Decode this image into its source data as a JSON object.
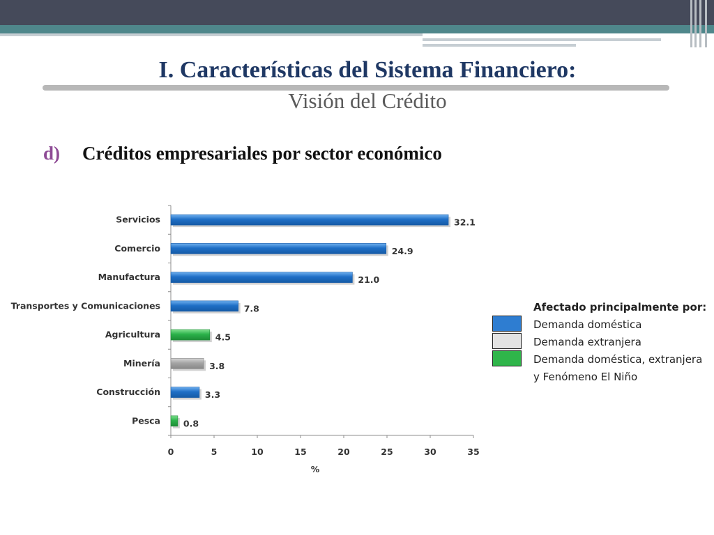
{
  "slide": {
    "title": "I. Características del Sistema Financiero:",
    "subtitle": "Visión del Crédito",
    "section_letter": "d)",
    "section_title": "Créditos empresariales por sector económico"
  },
  "colors": {
    "domestic": "#2e7dd1",
    "external": "#a6a6a6",
    "mixed": "#2fb54a"
  },
  "chart_data": {
    "type": "bar",
    "orientation": "horizontal",
    "categories": [
      "Servicios",
      "Comercio",
      "Manufactura",
      "Transportes y Comunicaciones",
      "Agricultura",
      "Minería",
      "Construcción",
      "Pesca"
    ],
    "values": [
      32.1,
      24.9,
      21.0,
      7.8,
      4.5,
      3.8,
      3.3,
      0.8
    ],
    "value_labels": [
      "32.1",
      "24.9",
      "21.0",
      "7.8",
      "4.5",
      "3.8",
      "3.3",
      "0.8"
    ],
    "bar_groups": [
      "domestic",
      "domestic",
      "domestic",
      "domestic",
      "mixed",
      "external",
      "domestic",
      "mixed"
    ],
    "xlabel": "%",
    "xlim": [
      0,
      35
    ],
    "xticks": [
      "0",
      "5",
      "10",
      "15",
      "20",
      "25",
      "30",
      "35"
    ],
    "grid": false
  },
  "legend": {
    "title": "Afectado principalmente por:",
    "items": [
      {
        "label": "Demanda doméstica",
        "group": "domestic"
      },
      {
        "label": "Demanda extranjera",
        "group": "external"
      },
      {
        "label": "Demanda doméstica, extranjera",
        "group": "mixed"
      }
    ],
    "continuation": "y Fenómeno El Niño"
  }
}
